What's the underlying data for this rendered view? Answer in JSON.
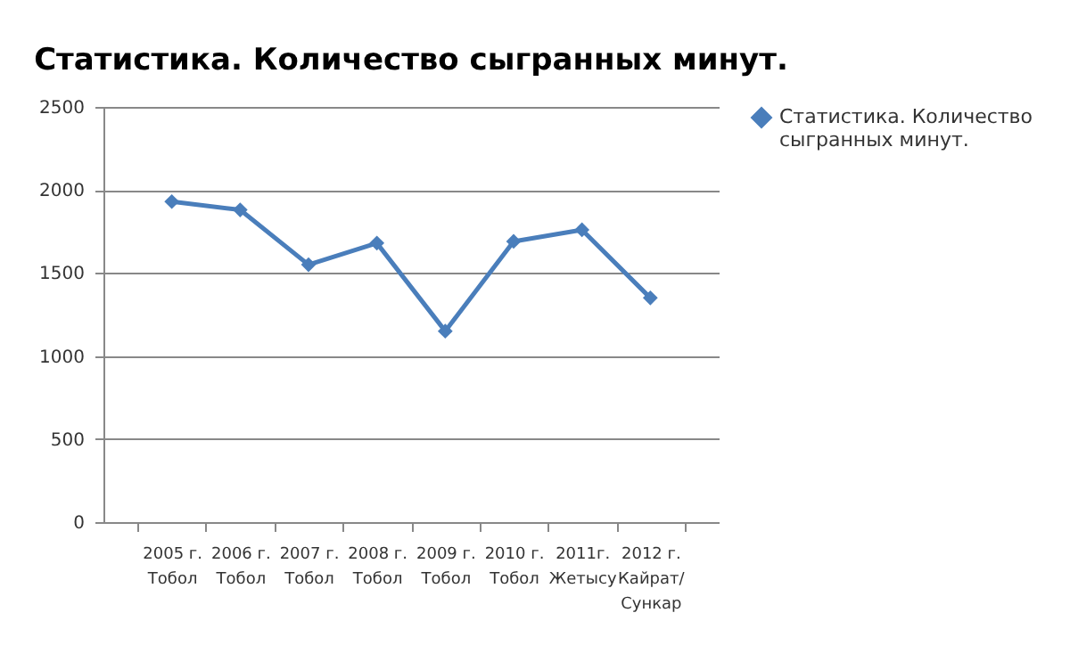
{
  "chart_data": {
    "type": "line",
    "title": "Статистика. Количество сыгранных минут.",
    "categories": [
      "2005 г.\nТобол",
      "2006 г.\nТобол",
      "2007 г.\nТобол",
      "2008 г.\nТобол",
      "2009 г.\nТобол",
      "2010 г.\nТобол",
      "2011г.\nЖетысу",
      "2012 г.\nКайрат/\nСункар"
    ],
    "series": [
      {
        "name": "Статистика. Количество сыгранных минут.",
        "color": "#4a7ebb",
        "values": [
          1930,
          1880,
          1550,
          1680,
          1150,
          1690,
          1760,
          1350
        ]
      }
    ],
    "ylim": [
      0,
      2500
    ],
    "yticks": [
      0,
      500,
      1000,
      1500,
      2000,
      2500
    ],
    "grid": "y",
    "legend": "right",
    "marker": "diamond",
    "line_style": "solid"
  }
}
